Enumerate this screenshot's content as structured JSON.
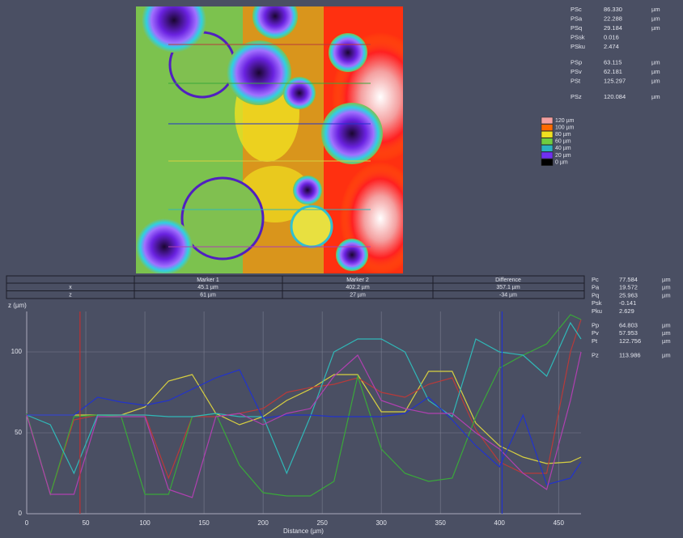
{
  "surface_parameters": [
    [
      [
        "PSc",
        "86.330",
        "µm"
      ],
      [
        "PSa",
        "22.288",
        "µm"
      ],
      [
        "PSq",
        "29.184",
        "µm"
      ],
      [
        "PSsk",
        "0.016"
      ],
      [
        "PSku",
        "2.474"
      ]
    ],
    [
      [
        "PSp",
        "63.115",
        "µm"
      ],
      [
        "PSv",
        "62.181",
        "µm"
      ],
      [
        "PSt",
        "125.297",
        "µm"
      ]
    ],
    [
      [
        "PSz",
        "120.084",
        "µm"
      ]
    ]
  ],
  "height_legend": [
    {
      "label": "120 µm",
      "color": "#f4a0a0"
    },
    {
      "label": "100 µm",
      "color": "#ff6a00"
    },
    {
      "label": "80 µm",
      "color": "#f0e020"
    },
    {
      "label": "60 µm",
      "color": "#70cc40"
    },
    {
      "label": "40 µm",
      "color": "#2ab0c0"
    },
    {
      "label": "20 µm",
      "color": "#7030f0"
    },
    {
      "label": "0 µm",
      "color": "#000000"
    }
  ],
  "marker_table": {
    "header": [
      "Marker 1",
      "Marker 2",
      "Difference"
    ],
    "rows": [
      [
        "x",
        "45.1 µm",
        "402.2 µm",
        "357.1 µm"
      ],
      [
        "z",
        "61 µm",
        "27 µm",
        "-34 µm"
      ]
    ]
  },
  "profile_parameters": [
    [
      [
        "Pc",
        "77.584",
        "µm"
      ],
      [
        "Pa",
        "19.572",
        "µm"
      ],
      [
        "Pq",
        "25.963",
        "µm"
      ],
      [
        "Psk",
        "-0.141"
      ],
      [
        "Pku",
        "2.629"
      ]
    ],
    [
      [
        "Pp",
        "64.803",
        "µm"
      ],
      [
        "Pv",
        "57.953",
        "µm"
      ],
      [
        "Pt",
        "122.756",
        "µm"
      ]
    ],
    [
      [
        "Pz",
        "113.986",
        "µm"
      ]
    ]
  ],
  "chart_data": {
    "type": "line",
    "ylabel": "z (µm)",
    "xlabel": "Distance (µm)",
    "x": [
      0,
      20,
      40,
      60,
      80,
      100,
      120,
      140,
      160,
      180,
      200,
      220,
      240,
      260,
      280,
      300,
      320,
      340,
      360,
      380,
      400,
      420,
      440,
      460,
      469
    ],
    "series": [
      {
        "color": "#d8d040",
        "values": [
          61,
          61,
          61,
          61,
          61,
          66,
          82,
          86,
          62,
          55,
          60,
          70,
          77,
          86,
          86,
          63,
          63,
          88,
          88,
          56,
          42,
          35,
          31,
          32,
          35
        ]
      },
      {
        "color": "#b83a3a",
        "values": [
          61,
          12,
          58,
          61,
          61,
          61,
          22,
          60,
          60,
          62,
          65,
          75,
          78,
          80,
          84,
          75,
          72,
          80,
          84,
          52,
          32,
          25,
          25,
          100,
          120
        ]
      },
      {
        "color": "#3aa83a",
        "values": [
          62,
          12,
          60,
          61,
          60,
          12,
          12,
          60,
          62,
          30,
          13,
          11,
          11,
          20,
          85,
          40,
          25,
          20,
          22,
          60,
          90,
          98,
          105,
          123,
          120
        ]
      },
      {
        "color": "#30b8b8",
        "values": [
          61,
          55,
          25,
          61,
          61,
          61,
          60,
          60,
          62,
          60,
          60,
          25,
          60,
          100,
          108,
          108,
          100,
          70,
          60,
          108,
          100,
          98,
          85,
          118,
          108
        ]
      },
      {
        "color": "#2233cc",
        "values": [
          61,
          61,
          61,
          72,
          69,
          67,
          70,
          77,
          84,
          89,
          59,
          61,
          61,
          60,
          60,
          60,
          62,
          72,
          58,
          42,
          29,
          61,
          18,
          22,
          32
        ]
      },
      {
        "color": "#b040b0",
        "values": [
          61,
          12,
          12,
          60,
          60,
          60,
          15,
          10,
          60,
          62,
          55,
          62,
          65,
          85,
          98,
          70,
          65,
          62,
          62,
          50,
          40,
          25,
          15,
          70,
          100
        ]
      }
    ],
    "markers": [
      {
        "x": 45.1,
        "color": "#c03030"
      },
      {
        "x": 402.2,
        "color": "#2233cc"
      }
    ],
    "xlim": [
      0,
      469
    ],
    "ylim": [
      0,
      125
    ],
    "xticks": [
      0,
      50,
      100,
      150,
      200,
      250,
      300,
      350,
      400,
      450
    ],
    "yticks": [
      0,
      50,
      100
    ],
    "grid": true
  }
}
